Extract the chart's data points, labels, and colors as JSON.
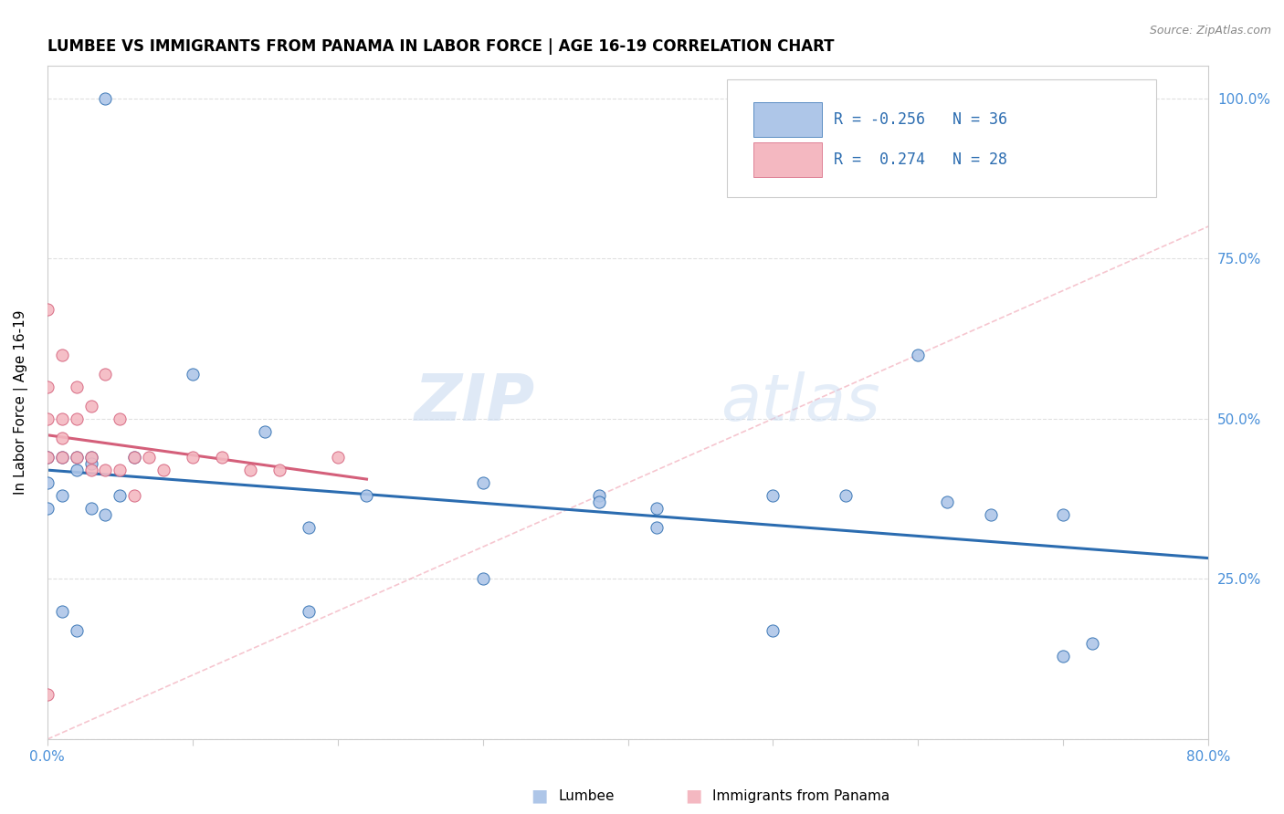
{
  "title": "LUMBEE VS IMMIGRANTS FROM PANAMA IN LABOR FORCE | AGE 16-19 CORRELATION CHART",
  "source_text": "Source: ZipAtlas.com",
  "ylabel": "In Labor Force | Age 16-19",
  "xlim": [
    0.0,
    0.8
  ],
  "ylim": [
    0.0,
    1.05
  ],
  "xticks": [
    0.0,
    0.1,
    0.2,
    0.3,
    0.4,
    0.5,
    0.6,
    0.7,
    0.8
  ],
  "xticklabels": [
    "0.0%",
    "",
    "",
    "",
    "",
    "",
    "",
    "",
    "80.0%"
  ],
  "yticks": [
    0.0,
    0.25,
    0.5,
    0.75,
    1.0
  ],
  "yticklabels": [
    "",
    "25.0%",
    "50.0%",
    "75.0%",
    "100.0%"
  ],
  "lumbee_color": "#aec6e8",
  "panama_color": "#f4b8c1",
  "trend_lumbee_color": "#2b6cb0",
  "trend_panama_color": "#d45f7a",
  "watermark_zip": "ZIP",
  "watermark_atlas": "atlas",
  "legend_r_lumbee": "-0.256",
  "legend_n_lumbee": "36",
  "legend_r_panama": "0.274",
  "legend_n_panama": "28",
  "lumbee_x": [
    0.04,
    0.0,
    0.0,
    0.0,
    0.01,
    0.01,
    0.02,
    0.02,
    0.03,
    0.03,
    0.04,
    0.05,
    0.06,
    0.01,
    0.02,
    0.03,
    0.1,
    0.15,
    0.18,
    0.22,
    0.3,
    0.3,
    0.38,
    0.42,
    0.5,
    0.5,
    0.6,
    0.62,
    0.65,
    0.7,
    0.7,
    0.38,
    0.42,
    0.18,
    0.55,
    0.72
  ],
  "lumbee_y": [
    1.0,
    0.44,
    0.4,
    0.36,
    0.44,
    0.38,
    0.44,
    0.42,
    0.44,
    0.36,
    0.35,
    0.38,
    0.44,
    0.2,
    0.17,
    0.43,
    0.57,
    0.48,
    0.2,
    0.38,
    0.4,
    0.25,
    0.38,
    0.36,
    0.17,
    0.38,
    0.6,
    0.37,
    0.35,
    0.35,
    0.13,
    0.37,
    0.33,
    0.33,
    0.38,
    0.15
  ],
  "panama_x": [
    0.0,
    0.0,
    0.0,
    0.0,
    0.0,
    0.01,
    0.01,
    0.01,
    0.01,
    0.02,
    0.02,
    0.02,
    0.03,
    0.03,
    0.03,
    0.04,
    0.04,
    0.05,
    0.05,
    0.06,
    0.06,
    0.07,
    0.08,
    0.1,
    0.12,
    0.14,
    0.16,
    0.2
  ],
  "panama_y": [
    0.67,
    0.55,
    0.5,
    0.44,
    0.07,
    0.6,
    0.5,
    0.47,
    0.44,
    0.55,
    0.5,
    0.44,
    0.52,
    0.44,
    0.42,
    0.57,
    0.42,
    0.5,
    0.42,
    0.44,
    0.38,
    0.44,
    0.42,
    0.44,
    0.44,
    0.42,
    0.42,
    0.44
  ],
  "tick_color": "#4a90d9",
  "axis_color": "#cccccc",
  "grid_color": "#e0e0e0"
}
